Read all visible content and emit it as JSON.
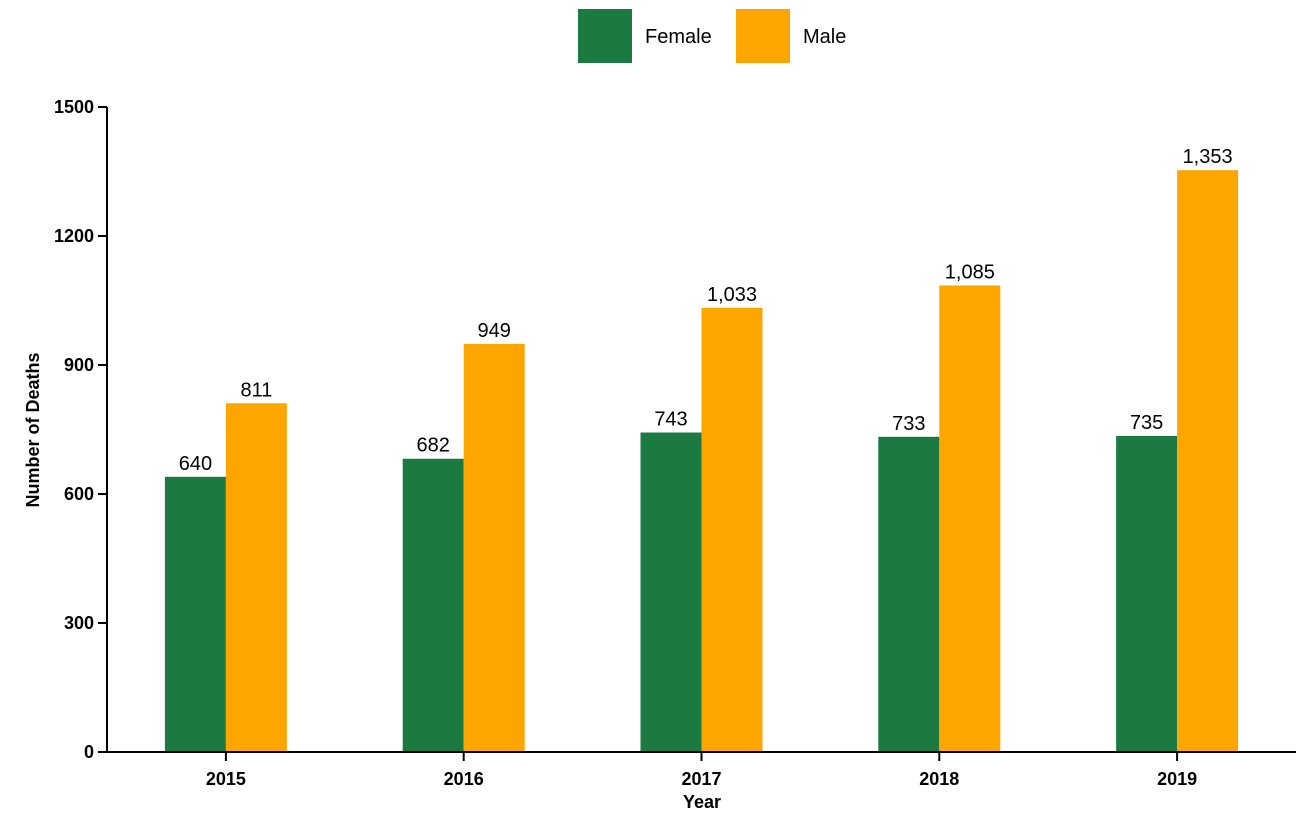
{
  "chart_data": {
    "type": "bar",
    "categories": [
      "2015",
      "2016",
      "2017",
      "2018",
      "2019"
    ],
    "series": [
      {
        "name": "Female",
        "color": "#1a7a42",
        "values": [
          640,
          682,
          743,
          733,
          735
        ],
        "labels": [
          "640",
          "682",
          "743",
          "733",
          "735"
        ]
      },
      {
        "name": "Male",
        "color": "#ffa500",
        "values": [
          811,
          949,
          1033,
          1085,
          1353
        ],
        "labels": [
          "811",
          "949",
          "1,033",
          "1,085",
          "1,353"
        ]
      }
    ],
    "xlabel": "Year",
    "ylabel": "Number of Deaths",
    "ylim": [
      0,
      1500
    ],
    "yticks": [
      "0",
      "300",
      "600",
      "900",
      "1200",
      "1500"
    ],
    "legend_position": "top-center",
    "grid": false
  }
}
